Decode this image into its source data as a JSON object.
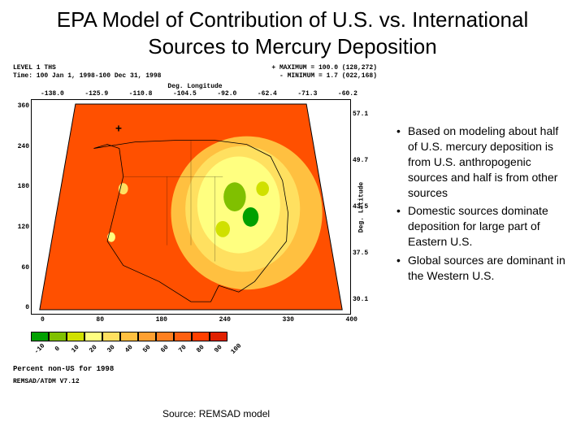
{
  "title": "EPA Model of Contribution of U.S. vs. International Sources to Mercury Deposition",
  "figure": {
    "meta_left_line1": "LEVEL 1 THS",
    "meta_left_line2": "Time: 100 Jan 1, 1998-100 Dec 31, 1998",
    "meta_right_line1": "+  MAXIMUM = 100.0     (128,272)",
    "meta_right_line2": "-  MINIMUM = 1.7       (022,168)",
    "x_axis_title": "Deg. Longitude",
    "y_axis_title": "Deg. Latitude",
    "x_ticks": [
      "-138.0",
      "-125.9",
      "-110.8",
      "-104.5",
      "-92.0",
      "-62.4",
      "-71.3",
      "-60.2"
    ],
    "y_ticks_left": [
      "360",
      "240",
      "180",
      "120",
      "60",
      "0"
    ],
    "y_ticks_right": [
      "57.1",
      "49.7",
      "43.5",
      "37.5",
      "30.1"
    ],
    "x_ticks_bottom": [
      "0",
      "80",
      "180",
      "240",
      "330",
      "400"
    ],
    "plus_marker": "+",
    "caption": "Percent non-US for 1998",
    "version": "REMSAD/ATDM V7.12",
    "heatmap_colors": [
      "#00a000",
      "#80c000",
      "#d0e000",
      "#ffff80",
      "#ffe060",
      "#ffc040",
      "#ffa030",
      "#ff8020",
      "#ff6010",
      "#ff4000",
      "#e02000"
    ],
    "legend_labels": [
      "-10",
      "0",
      "10",
      "20",
      "30",
      "40",
      "50",
      "60",
      "70",
      "80",
      "90",
      "100"
    ],
    "background_color": "#ffffff"
  },
  "bullets": [
    "Based on modeling about half of U.S. mercury deposition is from U.S. anthropogenic sources and half is from other sources",
    "Domestic sources dominate deposition for large part of Eastern U.S.",
    "Global sources are dominant in the Western U.S."
  ],
  "source_text": "Source:  REMSAD model"
}
